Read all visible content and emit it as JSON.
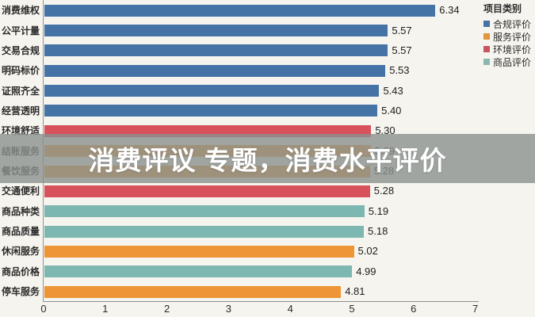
{
  "watermark": {
    "text": "消费评议 专题，消费水平评价"
  },
  "chart_data": {
    "type": "bar",
    "orientation": "horizontal",
    "legend_title": "项目类别",
    "legend": [
      {
        "label": "合规评价",
        "color": "#4673a6"
      },
      {
        "label": "服务评价",
        "color": "#e0963c"
      },
      {
        "label": "环境评价",
        "color": "#c75660"
      },
      {
        "label": "商品评价",
        "color": "#89b7b1"
      }
    ],
    "colors": {
      "合规评价": "#4673a6",
      "服务评价": "#ee9637",
      "环境评价": "#d8525b",
      "商品评价": "#7cb7b1"
    },
    "rows": [
      {
        "label": "消费维权",
        "group": "合规评价",
        "value": 6.34
      },
      {
        "label": "公平计量",
        "group": "合规评价",
        "value": 5.57
      },
      {
        "label": "交易合规",
        "group": "合规评价",
        "value": 5.57
      },
      {
        "label": "明码标价",
        "group": "合规评价",
        "value": 5.53
      },
      {
        "label": "证照齐全",
        "group": "合规评价",
        "value": 5.43
      },
      {
        "label": "经营透明",
        "group": "合规评价",
        "value": 5.4
      },
      {
        "label": "环境舒适",
        "group": "环境评价",
        "value": 5.3
      },
      {
        "label": "结账服务",
        "group": "服务评价",
        "value": 5.29
      },
      {
        "label": "餐饮服务",
        "group": "服务评价",
        "value": 5.28
      },
      {
        "label": "交通便利",
        "group": "环境评价",
        "value": 5.28
      },
      {
        "label": "商品种类",
        "group": "商品评价",
        "value": 5.19
      },
      {
        "label": "商品质量",
        "group": "商品评价",
        "value": 5.18
      },
      {
        "label": "休闲服务",
        "group": "服务评价",
        "value": 5.02
      },
      {
        "label": "商品价格",
        "group": "商品评价",
        "value": 4.99
      },
      {
        "label": "停车服务",
        "group": "服务评价",
        "value": 4.81
      }
    ],
    "xlim": [
      0,
      7
    ],
    "x_ticks": [
      0,
      1,
      2,
      3,
      4,
      5,
      6,
      7
    ],
    "grid": false,
    "legend_position": "top-right"
  }
}
